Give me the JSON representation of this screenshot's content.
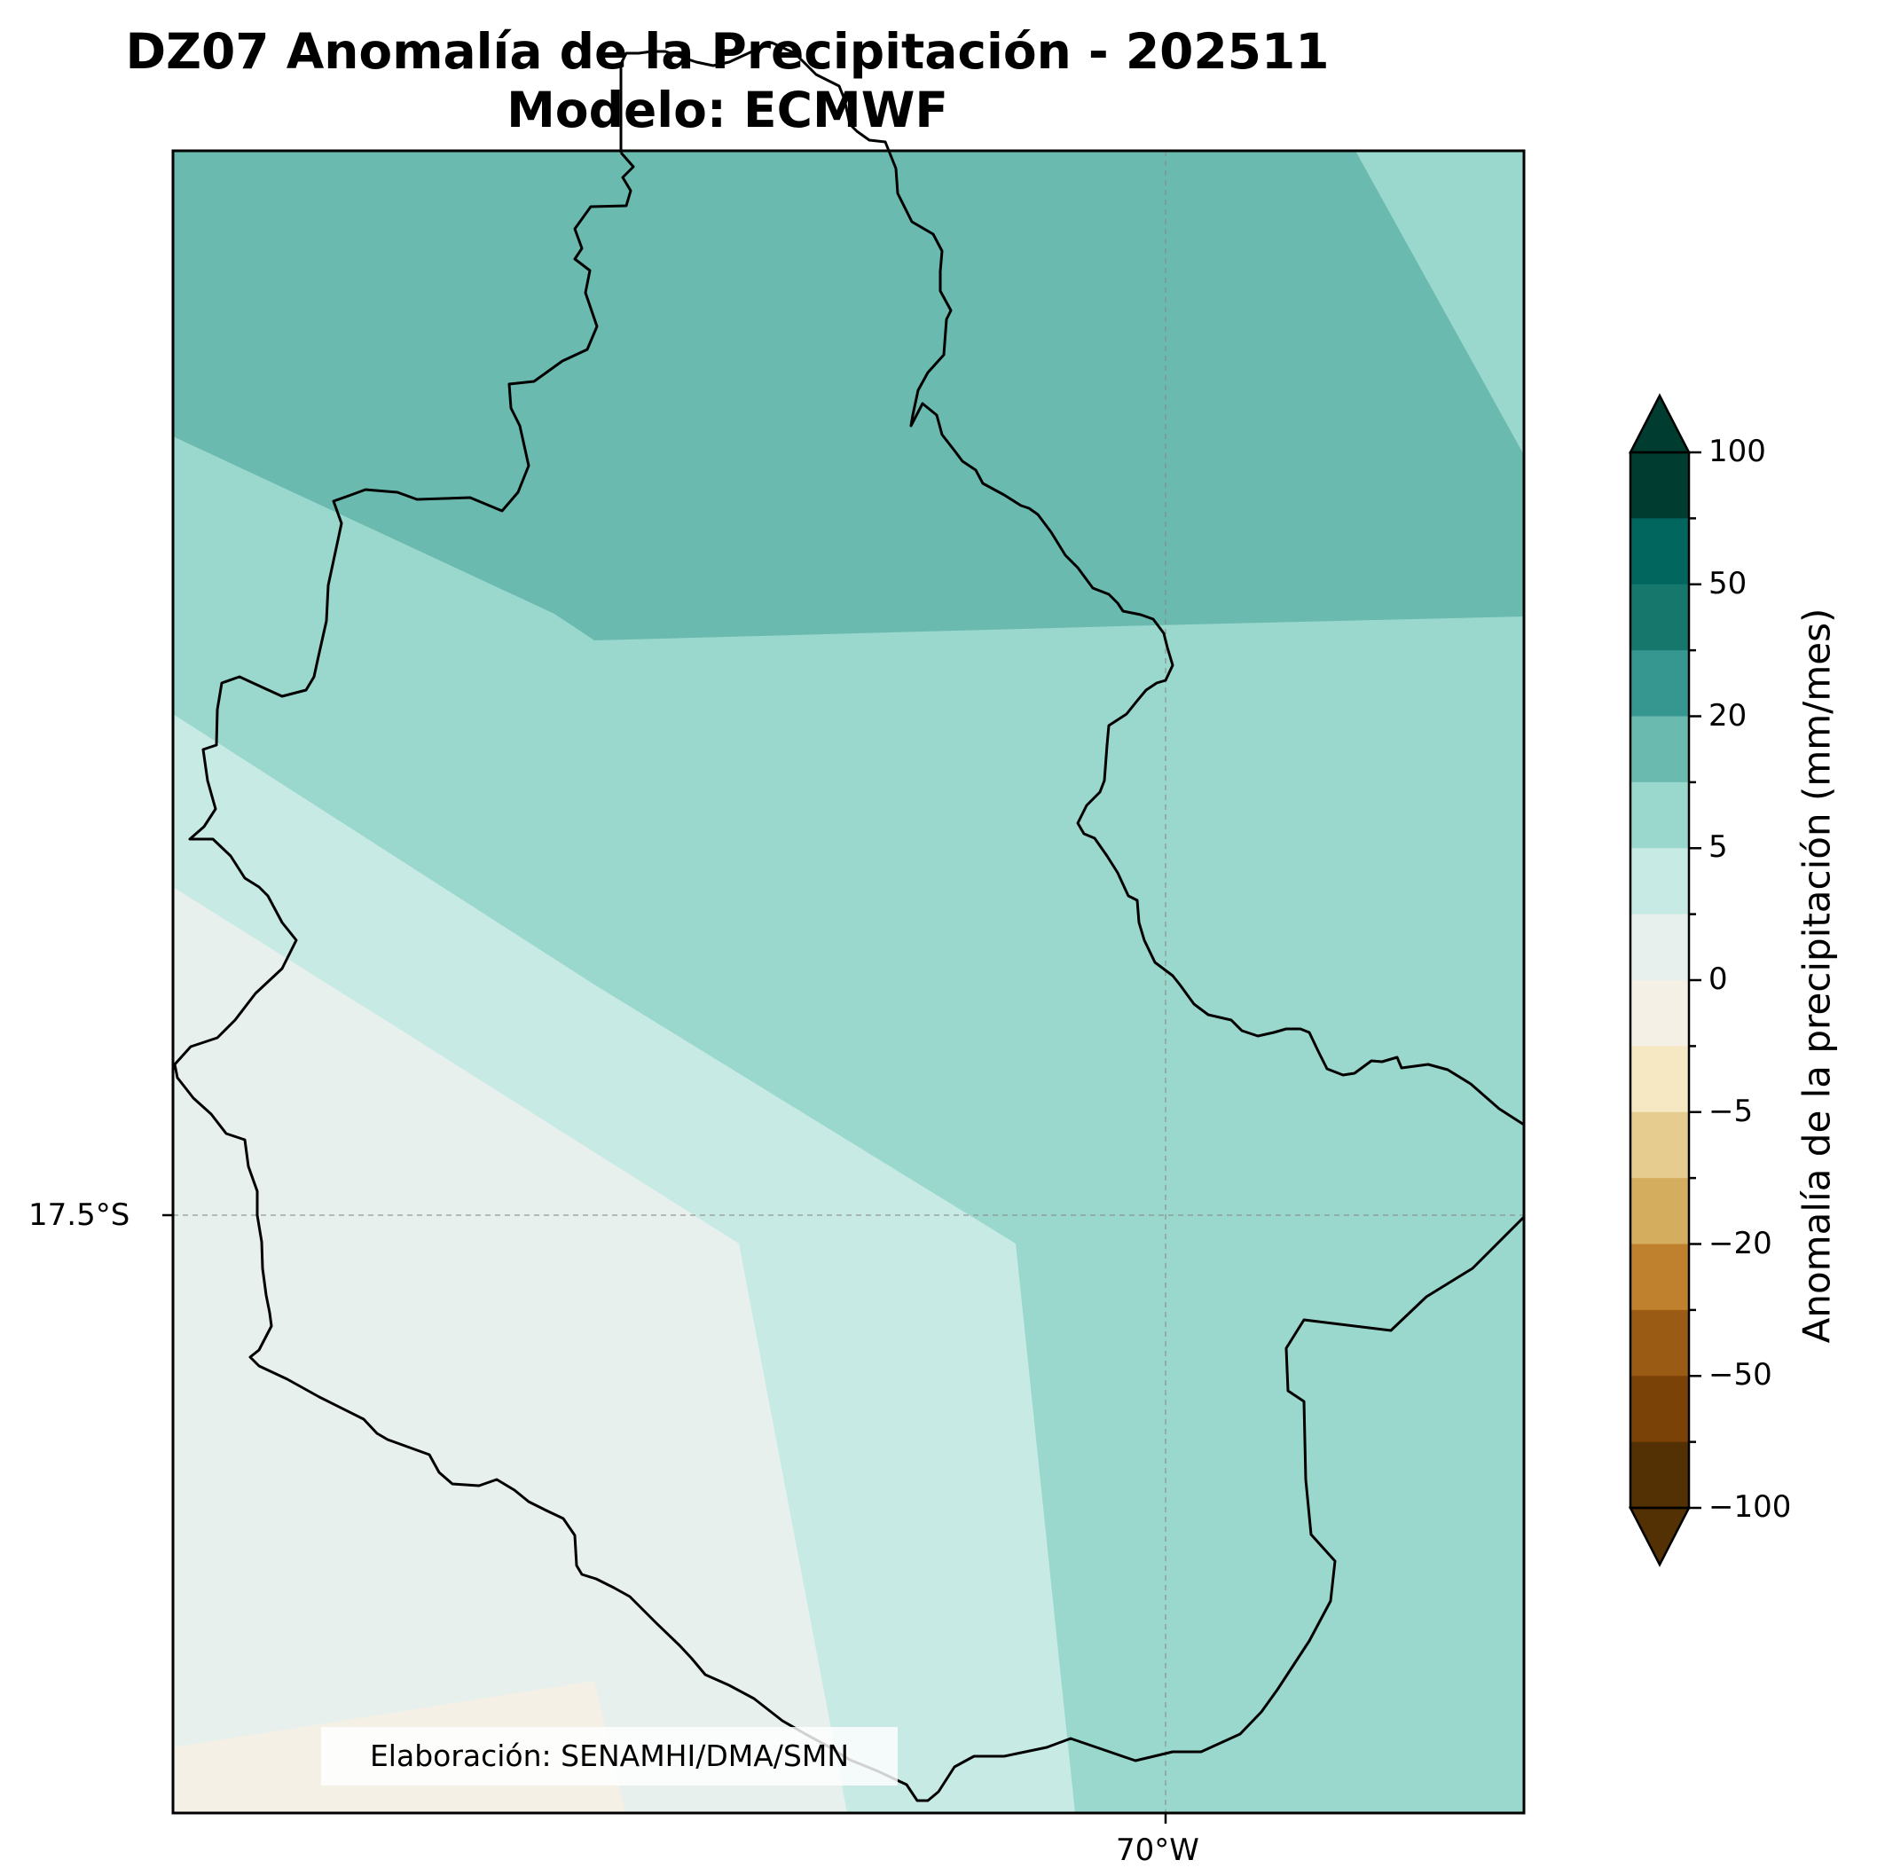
{
  "title_line1": "DZ07 Anomalía de la Precipitación - 202511",
  "title_line2": "Modelo: ECMWF",
  "lat_label": "17.5°S",
  "lon_label": "70°W",
  "credit": "Elaboración: SENAMHI/DMA/SMN",
  "colorbar": {
    "title": "Anomalía de la precipitación (mm/mes)",
    "labels": [
      "100",
      "50",
      "20",
      "5",
      "0",
      "−5",
      "−20",
      "−50",
      "−100"
    ],
    "colors_top_to_bottom": [
      "#003c30",
      "#01665e",
      "#16786d",
      "#35978f",
      "#6abab0",
      "#9ad7cd",
      "#c7eae5",
      "#e8f0ee",
      "#f4f0e6",
      "#f6e8c3",
      "#e7cc8f",
      "#d5ad5f",
      "#bf812d",
      "#9a5c15",
      "#7a4207",
      "#543005"
    ],
    "extend_max_color": "#003c30",
    "extend_min_color": "#543005"
  },
  "map_colors": {
    "band_20_50": "#6abab0",
    "band_5_10": "#9ad7cd",
    "band_2_5": "#c7eae5",
    "band_0_2": "#e8f0ee",
    "band_neg": "#f4f0e6",
    "border": "#000000",
    "grid": "#888888"
  }
}
